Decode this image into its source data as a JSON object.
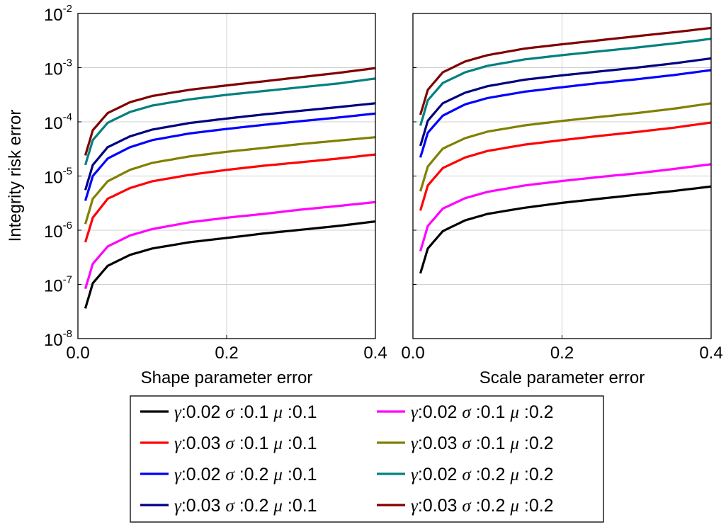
{
  "chart_data": [
    {
      "type": "line",
      "panel": "left",
      "xlabel": "Shape parameter error",
      "ylabel": "Integrity risk error",
      "xscale": "linear",
      "yscale": "log",
      "xlim": [
        0.0,
        0.4
      ],
      "ylim": [
        1e-08,
        0.01
      ],
      "xticks": [
        0.0,
        0.2,
        0.4
      ],
      "xtick_labels": [
        "0.0",
        "0.2",
        "0.4"
      ],
      "ytick_exponents": [
        -8,
        -7,
        -6,
        -5,
        -4,
        -3,
        -2
      ],
      "grid": true,
      "x": [
        0.01,
        0.02,
        0.04,
        0.07,
        0.1,
        0.15,
        0.2,
        0.25,
        0.3,
        0.35,
        0.4
      ],
      "series": [
        {
          "name": "γ:0.02 σ:0.1 μ:0.1",
          "color": "#000000",
          "values": [
            3.6e-08,
            1.05e-07,
            2.2e-07,
            3.5e-07,
            4.6e-07,
            6e-07,
            7.2e-07,
            8.7e-07,
            1.02e-06,
            1.2e-06,
            1.45e-06
          ]
        },
        {
          "name": "γ:0.02 σ:0.1 μ:0.2",
          "color": "#ff00ff",
          "values": [
            8.3e-08,
            2.4e-07,
            5e-07,
            8e-07,
            1.05e-06,
            1.4e-06,
            1.7e-06,
            2e-06,
            2.4e-06,
            2.8e-06,
            3.3e-06
          ]
        },
        {
          "name": "γ:0.03 σ:0.1 μ:0.1",
          "color": "#ff0000",
          "values": [
            6e-07,
            1.7e-06,
            3.8e-06,
            6e-06,
            8e-06,
            1.05e-05,
            1.3e-05,
            1.55e-05,
            1.8e-05,
            2.1e-05,
            2.5e-05
          ]
        },
        {
          "name": "γ:0.03 σ:0.1 μ:0.2",
          "color": "#808000",
          "values": [
            1.3e-06,
            3.8e-06,
            8e-06,
            1.3e-05,
            1.75e-05,
            2.3e-05,
            2.8e-05,
            3.3e-05,
            3.9e-05,
            4.5e-05,
            5.2e-05
          ]
        },
        {
          "name": "γ:0.02 σ:0.2 μ:0.1",
          "color": "#0000ff",
          "values": [
            3.5e-06,
            1e-05,
            2.1e-05,
            3.4e-05,
            4.6e-05,
            6.1e-05,
            7.4e-05,
            8.8e-05,
            0.000103,
            0.00012,
            0.000142
          ]
        },
        {
          "name": "γ:0.03 σ:0.2 μ:0.1",
          "color": "#000080",
          "values": [
            5.5e-06,
            1.6e-05,
            3.4e-05,
            5.4e-05,
            7.2e-05,
            9.5e-05,
            0.000115,
            0.000137,
            0.00016,
            0.000187,
            0.00022
          ]
        },
        {
          "name": "γ:0.02 σ:0.2 μ:0.2",
          "color": "#008080",
          "values": [
            1.6e-05,
            4.6e-05,
            9.6e-05,
            0.000152,
            0.0002,
            0.00026,
            0.000315,
            0.00037,
            0.000435,
            0.00051,
            0.00063
          ]
        },
        {
          "name": "γ:0.03 σ:0.2 μ:0.2",
          "color": "#800000",
          "values": [
            2.4e-05,
            7e-05,
            0.000145,
            0.00023,
            0.0003,
            0.00039,
            0.00047,
            0.00056,
            0.00067,
            0.0008,
            0.00098
          ]
        }
      ]
    },
    {
      "type": "line",
      "panel": "right",
      "xlabel": "Scale parameter error",
      "ylabel": "",
      "xscale": "linear",
      "yscale": "log",
      "xlim": [
        0.0,
        0.4
      ],
      "ylim": [
        1e-08,
        0.01
      ],
      "xticks": [
        0.0,
        0.2,
        0.4
      ],
      "xtick_labels": [
        "0.0",
        "0.2",
        "0.4"
      ],
      "grid": true,
      "x": [
        0.01,
        0.02,
        0.04,
        0.07,
        0.1,
        0.15,
        0.2,
        0.25,
        0.3,
        0.35,
        0.4
      ],
      "series": [
        {
          "name": "γ:0.02 σ:0.1 μ:0.1",
          "color": "#000000",
          "values": [
            1.6e-07,
            4.6e-07,
            9.6e-07,
            1.52e-06,
            2e-06,
            2.6e-06,
            3.2e-06,
            3.8e-06,
            4.5e-06,
            5.3e-06,
            6.4e-06
          ]
        },
        {
          "name": "γ:0.02 σ:0.1 μ:0.2",
          "color": "#ff00ff",
          "values": [
            4.1e-07,
            1.2e-06,
            2.5e-06,
            3.9e-06,
            5.1e-06,
            6.7e-06,
            8.1e-06,
            9.6e-06,
            1.12e-05,
            1.35e-05,
            1.65e-05
          ]
        },
        {
          "name": "γ:0.03 σ:0.1 μ:0.1",
          "color": "#ff0000",
          "values": [
            2.3e-06,
            6.7e-06,
            1.4e-05,
            2.2e-05,
            2.9e-05,
            3.8e-05,
            4.6e-05,
            5.5e-05,
            6.5e-05,
            7.8e-05,
            9.7e-05
          ]
        },
        {
          "name": "γ:0.03 σ:0.1 μ:0.2",
          "color": "#808000",
          "values": [
            5.2e-06,
            1.5e-05,
            3.2e-05,
            5e-05,
            6.6e-05,
            8.6e-05,
            0.000104,
            0.000123,
            0.000145,
            0.000175,
            0.00022
          ]
        },
        {
          "name": "γ:0.02 σ:0.2 μ:0.1",
          "color": "#0000ff",
          "values": [
            2.2e-05,
            6.3e-05,
            0.00013,
            0.00021,
            0.000275,
            0.00036,
            0.000435,
            0.00052,
            0.00061,
            0.00073,
            0.0009
          ]
        },
        {
          "name": "γ:0.03 σ:0.2 μ:0.1",
          "color": "#000080",
          "values": [
            3.6e-05,
            0.000105,
            0.00022,
            0.000345,
            0.000455,
            0.0006,
            0.00072,
            0.00085,
            0.001,
            0.0012,
            0.00148
          ]
        },
        {
          "name": "γ:0.02 σ:0.2 μ:0.2",
          "color": "#008080",
          "values": [
            8.5e-05,
            0.00025,
            0.00052,
            0.00082,
            0.00108,
            0.00142,
            0.0017,
            0.002,
            0.00235,
            0.0028,
            0.0034
          ]
        },
        {
          "name": "γ:0.03 σ:0.2 μ:0.2",
          "color": "#800000",
          "values": [
            0.000135,
            0.00039,
            0.00082,
            0.0013,
            0.0017,
            0.00225,
            0.0027,
            0.0032,
            0.0038,
            0.0045,
            0.0054
          ]
        }
      ]
    }
  ],
  "legend": {
    "placement": "bottom-center",
    "entries": [
      {
        "gamma": "0.02",
        "sigma": "0.1",
        "mu": "0.1",
        "color": "#000000"
      },
      {
        "gamma": "0.02",
        "sigma": "0.1",
        "mu": "0.2",
        "color": "#ff00ff"
      },
      {
        "gamma": "0.03",
        "sigma": "0.1",
        "mu": "0.1",
        "color": "#ff0000"
      },
      {
        "gamma": "0.03",
        "sigma": "0.1",
        "mu": "0.2",
        "color": "#808000"
      },
      {
        "gamma": "0.02",
        "sigma": "0.2",
        "mu": "0.1",
        "color": "#0000ff"
      },
      {
        "gamma": "0.02",
        "sigma": "0.2",
        "mu": "0.2",
        "color": "#008080"
      },
      {
        "gamma": "0.03",
        "sigma": "0.2",
        "mu": "0.1",
        "color": "#000080"
      },
      {
        "gamma": "0.03",
        "sigma": "0.2",
        "mu": "0.2",
        "color": "#800000"
      }
    ]
  },
  "symbols": {
    "gamma": "γ",
    "sigma": "σ",
    "mu": "μ",
    "separator": ":",
    "tick_base": "10"
  }
}
